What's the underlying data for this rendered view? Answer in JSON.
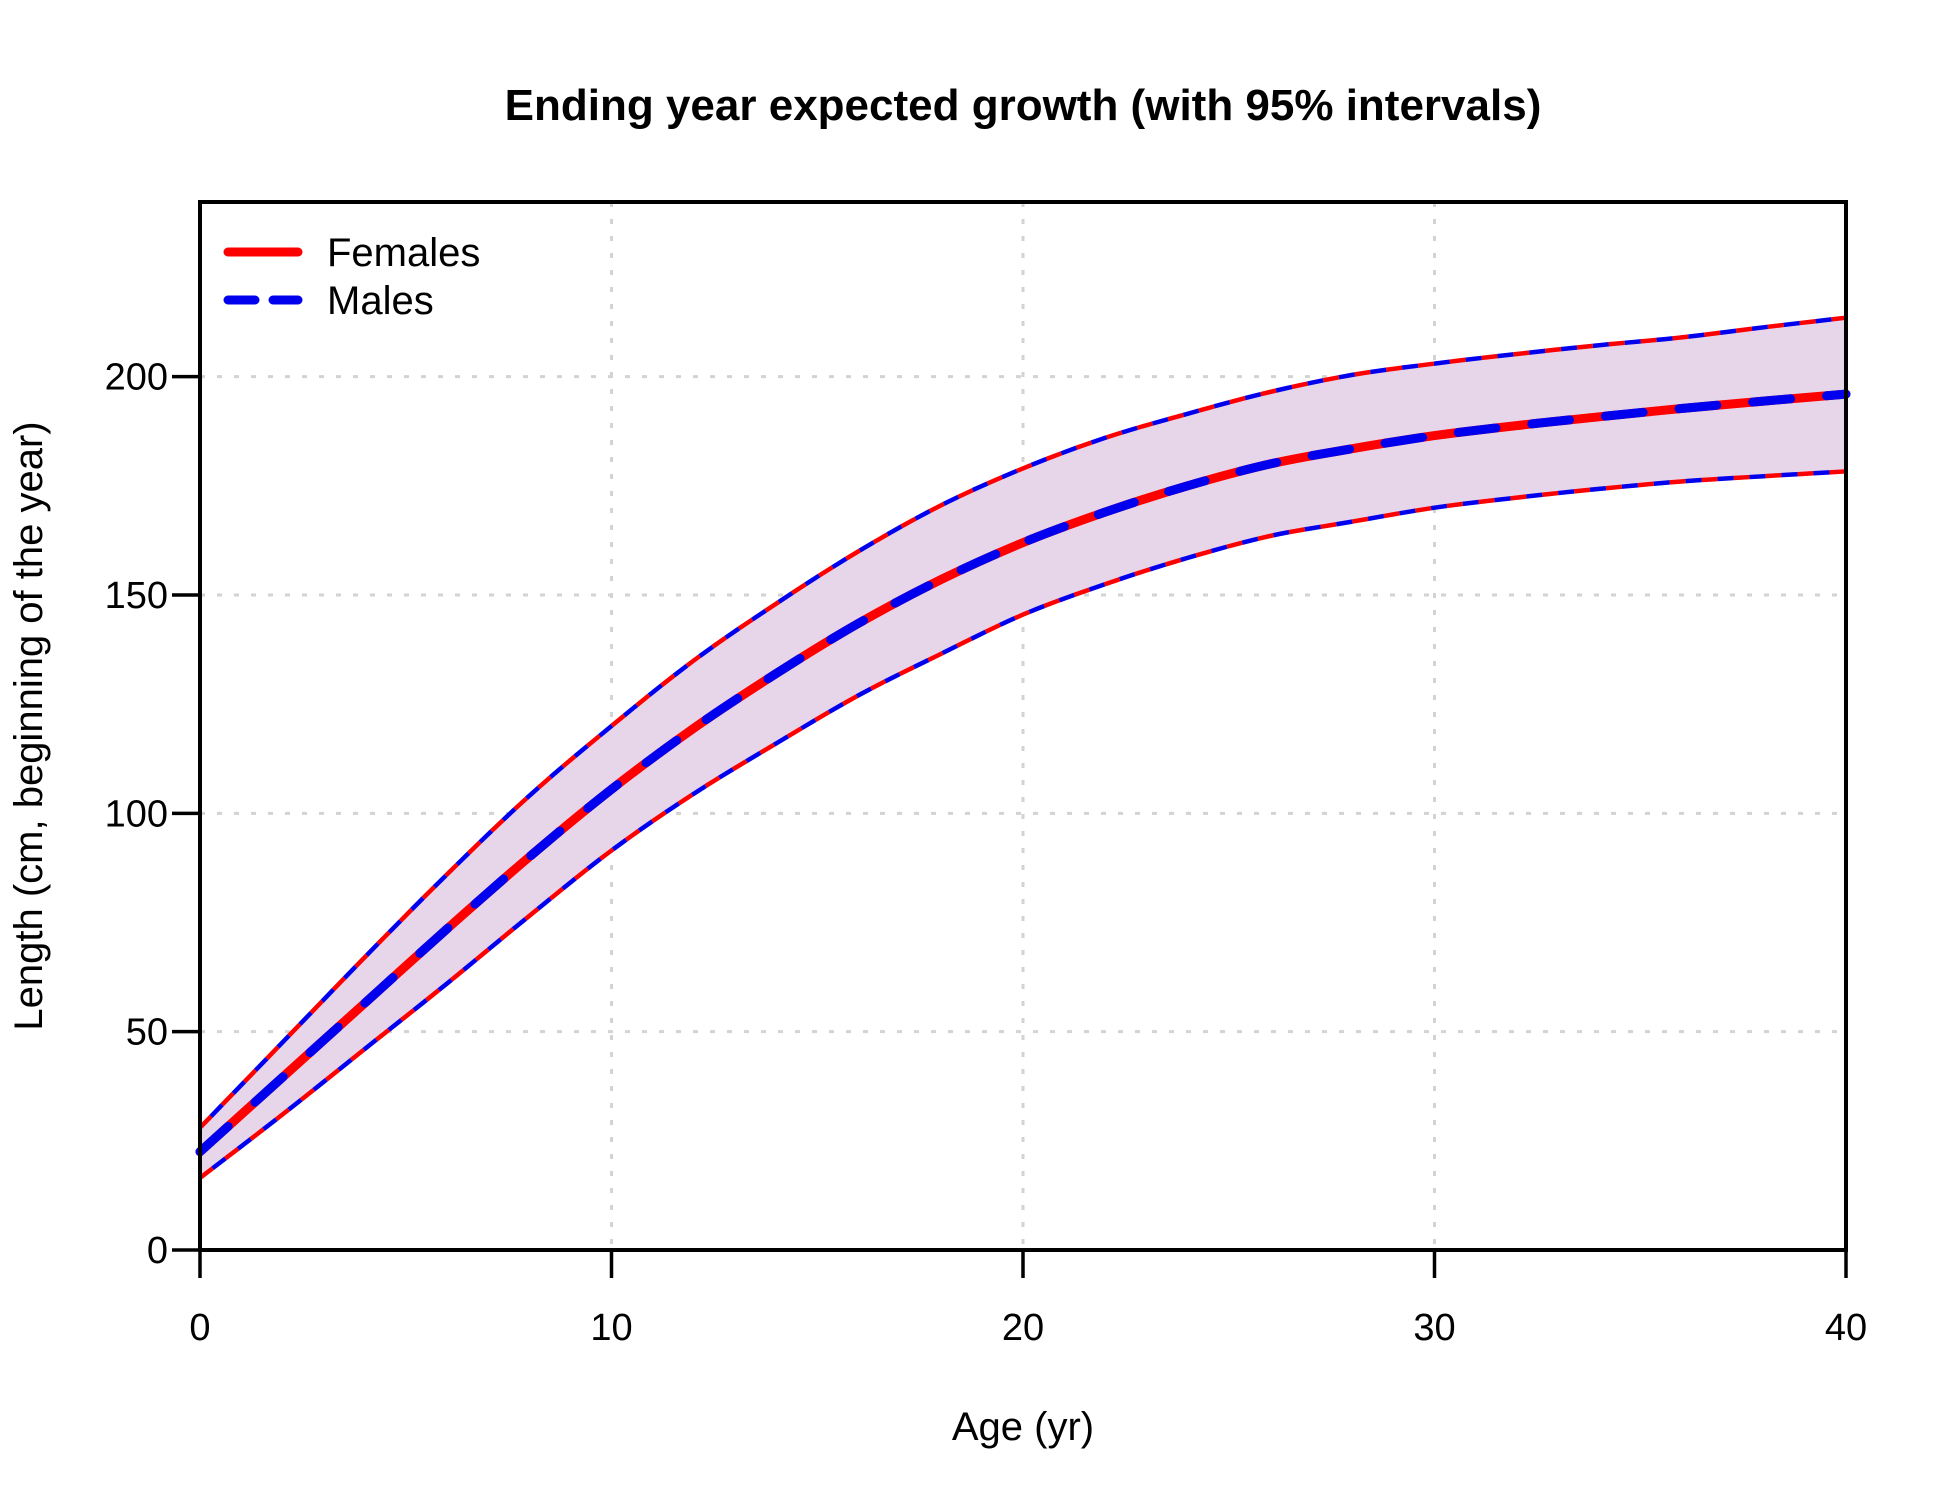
{
  "title": "Ending year expected growth (with 95% intervals)",
  "colors": {
    "females_line": "#FF0000",
    "males_line": "#0000EE",
    "band_fill": "#E7D6EA",
    "gridline": "#D3D3D3",
    "axis": "#000000",
    "background": "#FFFFFF"
  },
  "legend": {
    "entries": [
      {
        "label": "Females",
        "color": "#FF0000",
        "style": "solid"
      },
      {
        "label": "Males",
        "color": "#0000EE",
        "style": "dashed"
      }
    ]
  },
  "chart_data": {
    "type": "line",
    "title": "Ending year expected growth (with 95% intervals)",
    "xlabel": "Age (yr)",
    "ylabel": "Length (cm, beginning of the year)",
    "xlim": [
      0,
      40
    ],
    "ylim": [
      0,
      240
    ],
    "x_ticks": [
      0,
      10,
      20,
      30,
      40
    ],
    "y_ticks": [
      0,
      50,
      100,
      150,
      200
    ],
    "grid": true,
    "grid_style": "dotted",
    "legend_position": "top-left",
    "band_fill": "#E7D6EA",
    "x": [
      0,
      2,
      4,
      6,
      8,
      10,
      12,
      14,
      16,
      18,
      20,
      22,
      24,
      26,
      28,
      30,
      32,
      34,
      36,
      38,
      40
    ],
    "series": [
      {
        "name": "Females",
        "color": "#FF0000",
        "style": "solid",
        "mean": [
          22.5,
          39.5,
          56.5,
          73.5,
          90,
          105.5,
          119.5,
          132,
          143.5,
          153.5,
          162,
          169,
          175,
          180,
          183.5,
          186.5,
          188.8,
          190.8,
          192.7,
          194.4,
          196
        ],
        "lower95": [
          16.5,
          31,
          46,
          61,
          76.5,
          91.5,
          104.5,
          116,
          127,
          136.5,
          145.5,
          152.5,
          158.5,
          163.5,
          166.8,
          170,
          172.3,
          174.3,
          176,
          177.2,
          178.3
        ],
        "upper95": [
          28,
          47.5,
          67,
          86,
          104,
          120,
          135,
          148,
          160,
          170.5,
          179,
          186,
          191.5,
          196.5,
          200.4,
          203,
          205.2,
          207.2,
          209,
          211.3,
          213.5
        ]
      },
      {
        "name": "Males",
        "color": "#0000EE",
        "style": "dashed",
        "mean": [
          22.5,
          39.5,
          56.5,
          73.5,
          90,
          105.5,
          119.5,
          132,
          143.5,
          153.5,
          162,
          169,
          175,
          180,
          183.5,
          186.5,
          188.8,
          190.8,
          192.7,
          194.4,
          196
        ],
        "lower95": [
          16.5,
          31,
          46,
          61,
          76.5,
          91.5,
          104.5,
          116,
          127,
          136.5,
          145.5,
          152.5,
          158.5,
          163.5,
          166.8,
          170,
          172.3,
          174.3,
          176,
          177.2,
          178.3
        ],
        "upper95": [
          28,
          47.5,
          67,
          86,
          104,
          120,
          135,
          148,
          160,
          170.5,
          179,
          186,
          191.5,
          196.5,
          200.4,
          203,
          205.2,
          207.2,
          209,
          211.3,
          213.5
        ]
      }
    ]
  }
}
